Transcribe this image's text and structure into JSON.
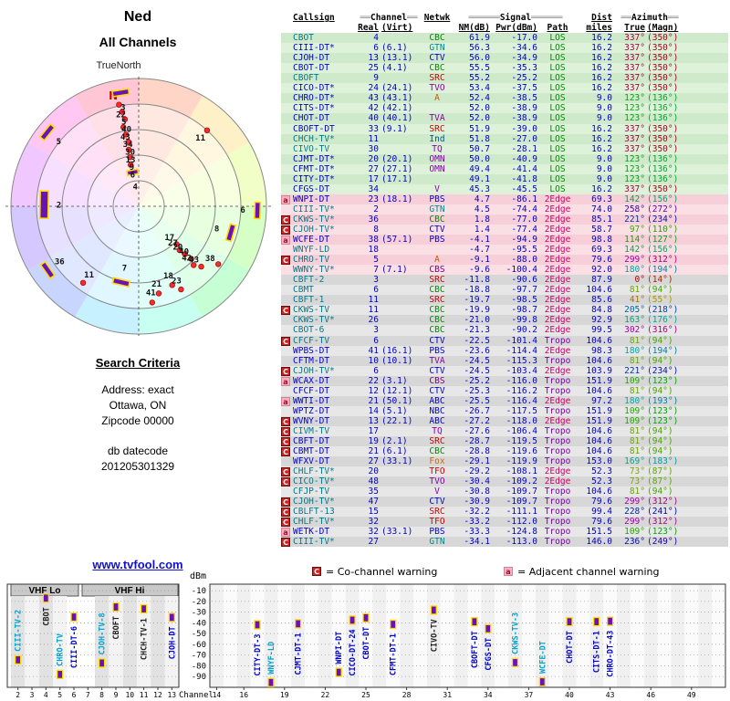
{
  "page": {
    "title": "Ned",
    "subtitle": "All Channels",
    "link": "www.tvfool.com"
  },
  "search_criteria": {
    "heading": "Search Criteria",
    "lines": [
      "Address: exact",
      "Ottawa, ON",
      "Zipcode 00000"
    ],
    "datecode_label": "db datecode",
    "datecode": "201205301329"
  },
  "legend": {
    "co": {
      "symbol": "C",
      "text": "= Co-channel warning"
    },
    "adj": {
      "symbol": "a",
      "text": "= Adjacent channel warning"
    }
  },
  "palette": {
    "co_badge": "#cc2222",
    "adj_badge": "#ffaebc",
    "digital_callsign": "#0000cc",
    "analog_callsign": "#00798c",
    "value_blue": "#0000cc",
    "bar_fill": "#6a11bb",
    "bar_outline": "#ffdd00",
    "dot_red": "#ff2a2a",
    "path_los": "#008800",
    "path_2edge": "#cc0066",
    "path_1edge": "#cc6600",
    "path_tropo": "#7700aa"
  },
  "table": {
    "header": {
      "callsign": "Callsign",
      "channel_group": "══Channel══",
      "real": "Real",
      "virt": "(Virt)",
      "netwk": "Netwk",
      "signal_group": "══════Signal══════",
      "nm": "NM(dB)",
      "pwr": "Pwr(dBm)",
      "path": "Path",
      "dist": "Dist",
      "miles": "miles",
      "azimuth_group": "══Azimuth══",
      "true_col": "True",
      "magn": "(Magn)"
    },
    "rows": [
      [
        "",
        "CBOT",
        "4",
        "",
        "CBC",
        "61.9",
        "-17.0",
        "LOS",
        "16.2",
        "337",
        "350"
      ],
      [
        "",
        "CIII-DT*",
        "6",
        "(6.1)",
        "GTN",
        "56.3",
        "-34.6",
        "LOS",
        "16.2",
        "337",
        "350"
      ],
      [
        "",
        "CJOH-DT",
        "13",
        "(13.1)",
        "CTV",
        "56.0",
        "-34.9",
        "LOS",
        "16.2",
        "337",
        "350"
      ],
      [
        "",
        "CBOT-DT",
        "25",
        "(4.1)",
        "CBC",
        "55.5",
        "-35.3",
        "LOS",
        "16.2",
        "337",
        "350"
      ],
      [
        "",
        "CBOFT",
        "9",
        "",
        "SRC",
        "55.2",
        "-25.2",
        "LOS",
        "16.2",
        "337",
        "350"
      ],
      [
        "",
        "CICO-DT*",
        "24",
        "(24.1)",
        "TVO",
        "53.4",
        "-37.5",
        "LOS",
        "16.2",
        "337",
        "350"
      ],
      [
        "",
        "CHRO-DT*",
        "43",
        "(43.1)",
        "A",
        "52.4",
        "-38.5",
        "LOS",
        "9.0",
        "123",
        "136"
      ],
      [
        "",
        "CITS-DT*",
        "42",
        "(42.1)",
        "",
        "52.0",
        "-38.9",
        "LOS",
        "9.0",
        "123",
        "136"
      ],
      [
        "",
        "CHOT-DT",
        "40",
        "(40.1)",
        "TVA",
        "52.0",
        "-38.9",
        "LOS",
        "9.0",
        "123",
        "136"
      ],
      [
        "",
        "CBOFT-DT",
        "33",
        "(9.1)",
        "SRC",
        "51.9",
        "-39.0",
        "LOS",
        "16.2",
        "337",
        "350"
      ],
      [
        "",
        "CHCH-TV*",
        "11",
        "",
        "Ind",
        "51.8",
        "-27.0",
        "LOS",
        "16.2",
        "337",
        "350"
      ],
      [
        "",
        "CIVO-TV",
        "30",
        "",
        "TQ",
        "50.7",
        "-28.1",
        "LOS",
        "16.2",
        "337",
        "350"
      ],
      [
        "",
        "CJMT-DT*",
        "20",
        "(20.1)",
        "OMN",
        "50.0",
        "-40.9",
        "LOS",
        "9.0",
        "123",
        "136"
      ],
      [
        "",
        "CFMT-DT*",
        "27",
        "(27.1)",
        "OMN",
        "49.4",
        "-41.4",
        "LOS",
        "9.0",
        "123",
        "136"
      ],
      [
        "",
        "CITY-DT*",
        "17",
        "(17.1)",
        "",
        "49.1",
        "-41.8",
        "LOS",
        "9.0",
        "123",
        "136"
      ],
      [
        "",
        "CFGS-DT",
        "34",
        "",
        "V",
        "45.3",
        "-45.5",
        "LOS",
        "16.2",
        "337",
        "350"
      ],
      [
        "a",
        "WNPI-DT",
        "23",
        "(18.1)",
        "PBS",
        "4.7",
        "-86.1",
        "2Edge",
        "69.3",
        "142",
        "156"
      ],
      [
        "",
        "CIII-TV*",
        "2",
        "",
        "GTN",
        "4.5",
        "-74.4",
        "2Edge",
        "74.0",
        "258",
        "272"
      ],
      [
        "C",
        "CKWS-TV*",
        "36",
        "",
        "CBC",
        "1.8",
        "-77.0",
        "2Edge",
        "85.1",
        "221",
        "234"
      ],
      [
        "C",
        "CJOH-TV*",
        "8",
        "",
        "CTV",
        "1.4",
        "-77.4",
        "2Edge",
        "58.7",
        "97",
        "110"
      ],
      [
        "a",
        "WCFE-DT",
        "38",
        "(57.1)",
        "PBS",
        "-4.1",
        "-94.9",
        "2Edge",
        "98.8",
        "114",
        "127"
      ],
      [
        "",
        "WNYF-LD",
        "18",
        "",
        "",
        "-4.7",
        "-95.5",
        "2Edge",
        "69.3",
        "142",
        "156"
      ],
      [
        "C",
        "CHRO-TV",
        "5",
        "",
        "A",
        "-9.1",
        "-88.0",
        "2Edge",
        "79.6",
        "299",
        "312"
      ],
      [
        "",
        "WWNY-TV*",
        "7",
        "(7.1)",
        "CBS",
        "-9.6",
        "-100.4",
        "2Edge",
        "92.0",
        "180",
        "194"
      ],
      [
        "",
        "CBFT-2",
        "3",
        "",
        "SRC",
        "-11.8",
        "-90.6",
        "2Edge",
        "87.9",
        "0",
        "14"
      ],
      [
        "",
        "CBMT",
        "6",
        "",
        "CBC",
        "-18.8",
        "-97.7",
        "2Edge",
        "104.6",
        "81",
        "94"
      ],
      [
        "",
        "CBFT-1",
        "11",
        "",
        "SRC",
        "-19.7",
        "-98.5",
        "2Edge",
        "85.6",
        "41",
        "55"
      ],
      [
        "C",
        "CKWS-TV",
        "11",
        "",
        "CBC",
        "-19.9",
        "-98.7",
        "2Edge",
        "84.8",
        "205",
        "218"
      ],
      [
        "",
        "CKWS-TV*",
        "26",
        "",
        "CBC",
        "-21.0",
        "-99.8",
        "2Edge",
        "92.9",
        "163",
        "176"
      ],
      [
        "",
        "CBOT-6",
        "3",
        "",
        "CBC",
        "-21.3",
        "-90.2",
        "2Edge",
        "99.5",
        "302",
        "316"
      ],
      [
        "C",
        "CFCF-TV",
        "6",
        "",
        "CTV",
        "-22.5",
        "-101.4",
        "Tropo",
        "104.6",
        "81",
        "94"
      ],
      [
        "",
        "WPBS-DT",
        "41",
        "(16.1)",
        "PBS",
        "-23.6",
        "-114.4",
        "2Edge",
        "98.3",
        "180",
        "194"
      ],
      [
        "",
        "CFTM-DT",
        "10",
        "(10.1)",
        "TVA",
        "-24.5",
        "-115.3",
        "Tropo",
        "104.6",
        "81",
        "94"
      ],
      [
        "C",
        "CJOH-TV*",
        "6",
        "",
        "CTV",
        "-24.5",
        "-103.4",
        "2Edge",
        "103.9",
        "221",
        "234"
      ],
      [
        "a",
        "WCAX-DT",
        "22",
        "(3.1)",
        "CBS",
        "-25.2",
        "-116.0",
        "Tropo",
        "151.9",
        "109",
        "123"
      ],
      [
        "",
        "CFCF-DT",
        "12",
        "(12.1)",
        "CTV",
        "-25.3",
        "-116.2",
        "Tropo",
        "104.6",
        "81",
        "94"
      ],
      [
        "a",
        "WWTI-DT",
        "21",
        "(50.1)",
        "ABC",
        "-25.5",
        "-116.4",
        "2Edge",
        "97.2",
        "180",
        "193"
      ],
      [
        "",
        "WPTZ-DT",
        "14",
        "(5.1)",
        "NBC",
        "-26.7",
        "-117.5",
        "Tropo",
        "151.9",
        "109",
        "123"
      ],
      [
        "C",
        "WVNY-DT",
        "13",
        "(22.1)",
        "ABC",
        "-27.2",
        "-118.0",
        "2Edge",
        "151.9",
        "109",
        "123"
      ],
      [
        "C",
        "CIVM-TV",
        "17",
        "",
        "TQ",
        "-27.6",
        "-106.4",
        "Tropo",
        "104.6",
        "81",
        "94"
      ],
      [
        "C",
        "CBFT-DT",
        "19",
        "(2.1)",
        "SRC",
        "-28.7",
        "-119.5",
        "Tropo",
        "104.6",
        "81",
        "94"
      ],
      [
        "C",
        "CBMT-DT",
        "21",
        "(6.1)",
        "CBC",
        "-28.8",
        "-119.6",
        "Tropo",
        "104.6",
        "81",
        "94"
      ],
      [
        "",
        "WFXV-DT",
        "27",
        "(33.1)",
        "Fox",
        "-29.1",
        "-119.9",
        "Tropo",
        "153.0",
        "169",
        "183"
      ],
      [
        "C",
        "CHLF-TV*",
        "20",
        "",
        "TFO",
        "-29.2",
        "-108.1",
        "2Edge",
        "52.3",
        "73",
        "87"
      ],
      [
        "C",
        "CICO-TV*",
        "48",
        "",
        "TVO",
        "-30.4",
        "-109.2",
        "2Edge",
        "52.3",
        "73",
        "87"
      ],
      [
        "",
        "CFJP-TV",
        "35",
        "",
        "V",
        "-30.8",
        "-109.7",
        "Tropo",
        "104.6",
        "81",
        "94"
      ],
      [
        "C",
        "CJOH-TV*",
        "47",
        "",
        "CTV",
        "-30.9",
        "-109.7",
        "Tropo",
        "79.6",
        "299",
        "312"
      ],
      [
        "C",
        "CBLFT-13",
        "15",
        "",
        "SRC",
        "-32.2",
        "-111.1",
        "Tropo",
        "99.4",
        "228",
        "241"
      ],
      [
        "C",
        "CHLF-TV*",
        "32",
        "",
        "TFO",
        "-33.2",
        "-112.0",
        "Tropo",
        "79.6",
        "299",
        "312"
      ],
      [
        "a",
        "WETK-DT",
        "32",
        "(33.1)",
        "PBS",
        "-33.3",
        "-124.8",
        "Tropo",
        "151.5",
        "109",
        "123"
      ],
      [
        "C",
        "CIII-TV*",
        "27",
        "",
        "GTN",
        "-34.1",
        "-113.0",
        "Tropo",
        "146.0",
        "236",
        "249"
      ]
    ]
  },
  "chart_data": [
    {
      "type": "scatter",
      "name": "azimuth-polar-plot",
      "title": "All Channels",
      "north_label": "TrueNorth",
      "north_marker": "N",
      "points": [
        {
          "label": "3",
          "az": 351,
          "r": 0.9,
          "marker": "bar"
        },
        {
          "label": "22",
          "az": 349,
          "r": 0.81,
          "marker": "dot"
        },
        {
          "label": "5",
          "az": 350,
          "r": 0.75,
          "marker": "dot"
        },
        {
          "label": "40",
          "az": 351,
          "r": 0.69,
          "marker": "dot"
        },
        {
          "label": "43",
          "az": 349,
          "r": 0.63,
          "marker": "dot"
        },
        {
          "label": "34",
          "az": 350,
          "r": 0.57,
          "marker": "dot"
        },
        {
          "label": "30",
          "az": 351,
          "r": 0.51,
          "marker": "dot"
        },
        {
          "label": "13",
          "az": 350,
          "r": 0.45,
          "marker": "dot"
        },
        {
          "label": "9",
          "az": 350,
          "r": 0.39,
          "marker": "dot"
        },
        {
          "label": "6",
          "az": 349,
          "r": 0.33,
          "marker": "dot"
        },
        {
          "label": "4",
          "az": 350,
          "r": 0.27,
          "marker": "bar-sm"
        },
        {
          "label": "11",
          "az": 42,
          "r": 0.8,
          "marker": "dot"
        },
        {
          "label": "6",
          "az": 92,
          "r": 0.93,
          "marker": "bar"
        },
        {
          "label": "8",
          "az": 106,
          "r": 0.75,
          "marker": "bar"
        },
        {
          "label": "38",
          "az": 126,
          "r": 0.77,
          "marker": "dot"
        },
        {
          "label": "43",
          "az": 134,
          "r": 0.68,
          "marker": "dot"
        },
        {
          "label": "42",
          "az": 137,
          "r": 0.63,
          "marker": "dot"
        },
        {
          "label": "40",
          "az": 135,
          "r": 0.58,
          "marker": "dot"
        },
        {
          "label": "20",
          "az": 136,
          "r": 0.52,
          "marker": "dot"
        },
        {
          "label": "27",
          "az": 137,
          "r": 0.47,
          "marker": "dot"
        },
        {
          "label": "17",
          "az": 135,
          "r": 0.42,
          "marker": "dot"
        },
        {
          "label": "23",
          "az": 153,
          "r": 0.73,
          "marker": "dot"
        },
        {
          "label": "18",
          "az": 157,
          "r": 0.67,
          "marker": "dot"
        },
        {
          "label": "21",
          "az": 167,
          "r": 0.7,
          "marker": "dot"
        },
        {
          "label": "41",
          "az": 172,
          "r": 0.76,
          "marker": "dot"
        },
        {
          "label": "7",
          "az": 193,
          "r": 0.61,
          "marker": "bar"
        },
        {
          "label": "11",
          "az": 216,
          "r": 0.74,
          "marker": "dot"
        },
        {
          "label": "36",
          "az": 235,
          "r": 0.87,
          "marker": "bar"
        },
        {
          "label": "2",
          "az": 271,
          "r": 0.74,
          "marker": "bar-lg"
        },
        {
          "label": "5",
          "az": 309,
          "r": 0.92,
          "marker": "bar"
        }
      ]
    },
    {
      "type": "scatter",
      "name": "vhf-band-chart",
      "bands": [
        "VHF Lo",
        "VHF Hi"
      ],
      "x_ticks": [
        2,
        3,
        4,
        5,
        6,
        7,
        8,
        9,
        10,
        11,
        12,
        13
      ],
      "ylabel": "dBm",
      "y_ticks": [
        -10,
        -20,
        -30,
        -40,
        -50,
        -60,
        -70,
        -80,
        -90
      ],
      "points": [
        {
          "callsign": "CIII-TV-2",
          "channel": 2,
          "dbm": -74.4,
          "color": "#00a3cc"
        },
        {
          "callsign": "CBOT",
          "channel": 4,
          "dbm": -17.0,
          "color": "#222222"
        },
        {
          "callsign": "CHRO-TV",
          "channel": 5,
          "dbm": -88.0,
          "color": "#00a3cc"
        },
        {
          "callsign": "CIII-DT-6",
          "channel": 6,
          "dbm": -34.6,
          "color": "#0000cc"
        },
        {
          "callsign": "CJOH-TV-8",
          "channel": 8,
          "dbm": -77.4,
          "color": "#00a3cc"
        },
        {
          "callsign": "CBOFT",
          "channel": 9,
          "dbm": -25.2,
          "color": "#222222"
        },
        {
          "callsign": "CHCH-TV-1",
          "channel": 11,
          "dbm": -27.0,
          "color": "#222222"
        },
        {
          "callsign": "CJOH-DT",
          "channel": 13,
          "dbm": -34.9,
          "color": "#0000cc"
        }
      ]
    },
    {
      "type": "scatter",
      "name": "uhf-band-chart",
      "xlabel": "Channel",
      "x_ticks": [
        14,
        16,
        19,
        22,
        25,
        28,
        31,
        34,
        37,
        40,
        43,
        46,
        49
      ],
      "x_range": [
        14,
        51
      ],
      "y_ticks": [
        -10,
        -20,
        -30,
        -40,
        -50,
        -60,
        -70,
        -80,
        -90
      ],
      "points": [
        {
          "callsign": "CITY-DT-3",
          "channel": 17,
          "dbm": -41.8,
          "color": "#0000cc"
        },
        {
          "callsign": "WNYF-LD",
          "channel": 18,
          "dbm": -95.5,
          "color": "#00a3cc"
        },
        {
          "callsign": "CJMT-DT-1",
          "channel": 20,
          "dbm": -40.9,
          "color": "#0000cc"
        },
        {
          "callsign": "WNPI-DT",
          "channel": 23,
          "dbm": -86.1,
          "color": "#0000cc"
        },
        {
          "callsign": "CICO-DT-24",
          "channel": 24,
          "dbm": -37.5,
          "color": "#0000cc"
        },
        {
          "callsign": "CBOT-DT",
          "channel": 25,
          "dbm": -35.3,
          "color": "#0000cc"
        },
        {
          "callsign": "CFMT-DT-1",
          "channel": 27,
          "dbm": -41.4,
          "color": "#0000cc"
        },
        {
          "callsign": "CIVO-TV",
          "channel": 30,
          "dbm": -28.1,
          "color": "#222222"
        },
        {
          "callsign": "CBOFT-DT",
          "channel": 33,
          "dbm": -39.0,
          "color": "#0000cc"
        },
        {
          "callsign": "CFGS-DT",
          "channel": 34,
          "dbm": -45.5,
          "color": "#0000cc"
        },
        {
          "callsign": "CKWS-TV-3",
          "channel": 36,
          "dbm": -77.0,
          "color": "#00a3cc"
        },
        {
          "callsign": "WCFE-DT",
          "channel": 38,
          "dbm": -94.9,
          "color": "#00a3cc"
        },
        {
          "callsign": "CHOT-DT",
          "channel": 40,
          "dbm": -38.9,
          "color": "#0000cc"
        },
        {
          "callsign": "CITS-DT-1",
          "channel": 42,
          "dbm": -38.9,
          "color": "#0000cc"
        },
        {
          "callsign": "CHRO-DT-43",
          "channel": 43,
          "dbm": -38.5,
          "color": "#0000cc"
        }
      ]
    }
  ]
}
